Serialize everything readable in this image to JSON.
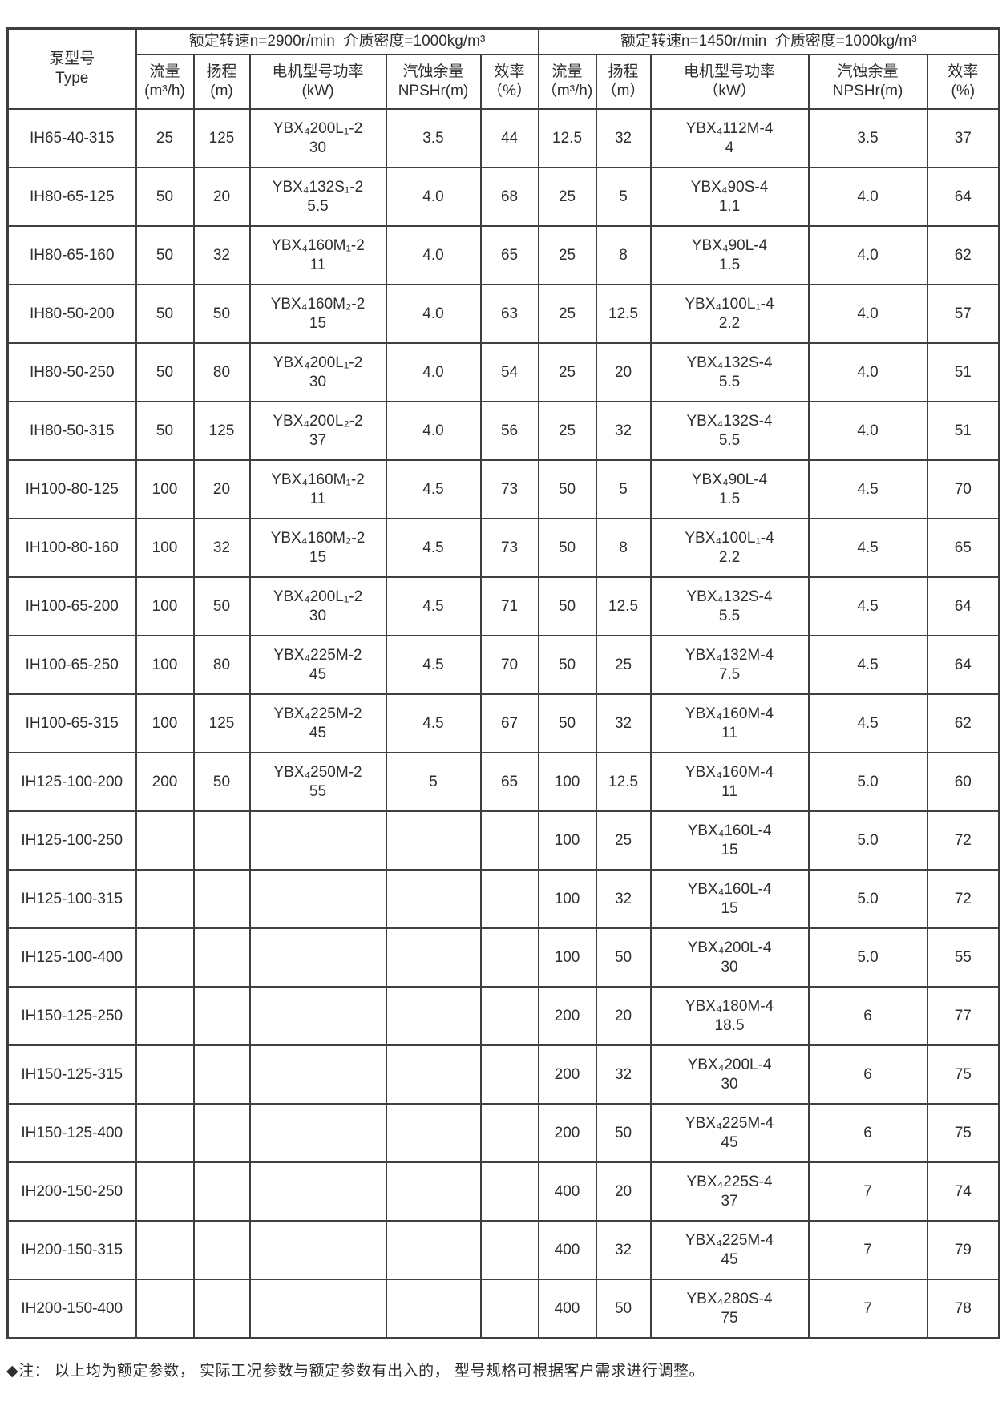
{
  "header": {
    "pump_type": "泵型号\nType",
    "group_2900": "额定转速n=2900r/min  介质密度=1000kg/m³",
    "group_1450": "额定转速n=1450r/min  介质密度=1000kg/m³",
    "subcolumns_2900": [
      "流量\n(m³/h)",
      "扬程\n(m)",
      "电机型号功率\n(kW)",
      "汽蚀余量\nNPSHr(m)",
      "效率\n（%）"
    ],
    "subcolumns_1450": [
      "流量\n（m³/h)",
      "扬程\n（m）",
      "电机型号功率\n（kW）",
      "汽蚀余量\nNPSHr(m)",
      "效率\n(%)"
    ]
  },
  "rows": [
    {
      "type": "IH65-40-315",
      "r2900": {
        "flow": "25",
        "head": "125",
        "motor": "YBX₄200L₁-2\n30",
        "npshr": "3.5",
        "eff": "44"
      },
      "r1450": {
        "flow": "12.5",
        "head": "32",
        "motor": "YBX₄112M-4\n4",
        "npshr": "3.5",
        "eff": "37"
      }
    },
    {
      "type": "IH80-65-125",
      "r2900": {
        "flow": "50",
        "head": "20",
        "motor": "YBX₄132S₁-2\n5.5",
        "npshr": "4.0",
        "eff": "68"
      },
      "r1450": {
        "flow": "25",
        "head": "5",
        "motor": "YBX₄90S-4\n1.1",
        "npshr": "4.0",
        "eff": "64"
      }
    },
    {
      "type": "IH80-65-160",
      "r2900": {
        "flow": "50",
        "head": "32",
        "motor": "YBX₄160M₁-2\n11",
        "npshr": "4.0",
        "eff": "65"
      },
      "r1450": {
        "flow": "25",
        "head": "8",
        "motor": "YBX₄90L-4\n1.5",
        "npshr": "4.0",
        "eff": "62"
      }
    },
    {
      "type": "IH80-50-200",
      "r2900": {
        "flow": "50",
        "head": "50",
        "motor": "YBX₄160M₂-2\n15",
        "npshr": "4.0",
        "eff": "63"
      },
      "r1450": {
        "flow": "25",
        "head": "12.5",
        "motor": "YBX₄100L₁-4\n2.2",
        "npshr": "4.0",
        "eff": "57"
      }
    },
    {
      "type": "IH80-50-250",
      "r2900": {
        "flow": "50",
        "head": "80",
        "motor": "YBX₄200L₁-2\n30",
        "npshr": "4.0",
        "eff": "54"
      },
      "r1450": {
        "flow": "25",
        "head": "20",
        "motor": "YBX₄132S-4\n5.5",
        "npshr": "4.0",
        "eff": "51"
      }
    },
    {
      "type": "IH80-50-315",
      "r2900": {
        "flow": "50",
        "head": "125",
        "motor": "YBX₄200L₂-2\n37",
        "npshr": "4.0",
        "eff": "56"
      },
      "r1450": {
        "flow": "25",
        "head": "32",
        "motor": "YBX₄132S-4\n5.5",
        "npshr": "4.0",
        "eff": "51"
      }
    },
    {
      "type": "IH100-80-125",
      "r2900": {
        "flow": "100",
        "head": "20",
        "motor": "YBX₄160M₁-2\n11",
        "npshr": "4.5",
        "eff": "73"
      },
      "r1450": {
        "flow": "50",
        "head": "5",
        "motor": "YBX₄90L-4\n1.5",
        "npshr": "4.5",
        "eff": "70"
      }
    },
    {
      "type": "IH100-80-160",
      "r2900": {
        "flow": "100",
        "head": "32",
        "motor": "YBX₄160M₂-2\n15",
        "npshr": "4.5",
        "eff": "73"
      },
      "r1450": {
        "flow": "50",
        "head": "8",
        "motor": "YBX₄100L₁-4\n2.2",
        "npshr": "4.5",
        "eff": "65"
      }
    },
    {
      "type": "IH100-65-200",
      "r2900": {
        "flow": "100",
        "head": "50",
        "motor": "YBX₄200L₁-2\n30",
        "npshr": "4.5",
        "eff": "71"
      },
      "r1450": {
        "flow": "50",
        "head": "12.5",
        "motor": "YBX₄132S-4\n5.5",
        "npshr": "4.5",
        "eff": "64"
      }
    },
    {
      "type": "IH100-65-250",
      "r2900": {
        "flow": "100",
        "head": "80",
        "motor": "YBX₄225M-2\n45",
        "npshr": "4.5",
        "eff": "70"
      },
      "r1450": {
        "flow": "50",
        "head": "25",
        "motor": "YBX₄132M-4\n7.5",
        "npshr": "4.5",
        "eff": "64"
      }
    },
    {
      "type": "IH100-65-315",
      "r2900": {
        "flow": "100",
        "head": "125",
        "motor": "YBX₄225M-2\n45",
        "npshr": "4.5",
        "eff": "67"
      },
      "r1450": {
        "flow": "50",
        "head": "32",
        "motor": "YBX₄160M-4\n11",
        "npshr": "4.5",
        "eff": "62"
      }
    },
    {
      "type": "IH125-100-200",
      "r2900": {
        "flow": "200",
        "head": "50",
        "motor": "YBX₄250M-2\n55",
        "npshr": "5",
        "eff": "65"
      },
      "r1450": {
        "flow": "100",
        "head": "12.5",
        "motor": "YBX₄160M-4\n11",
        "npshr": "5.0",
        "eff": "60"
      }
    },
    {
      "type": "IH125-100-250",
      "r2900": {
        "flow": "",
        "head": "",
        "motor": "",
        "npshr": "",
        "eff": ""
      },
      "r1450": {
        "flow": "100",
        "head": "25",
        "motor": "YBX₄160L-4\n15",
        "npshr": "5.0",
        "eff": "72"
      }
    },
    {
      "type": "IH125-100-315",
      "r2900": {
        "flow": "",
        "head": "",
        "motor": "",
        "npshr": "",
        "eff": ""
      },
      "r1450": {
        "flow": "100",
        "head": "32",
        "motor": "YBX₄160L-4\n15",
        "npshr": "5.0",
        "eff": "72"
      }
    },
    {
      "type": "IH125-100-400",
      "r2900": {
        "flow": "",
        "head": "",
        "motor": "",
        "npshr": "",
        "eff": ""
      },
      "r1450": {
        "flow": "100",
        "head": "50",
        "motor": "YBX₄200L-4\n30",
        "npshr": "5.0",
        "eff": "55"
      }
    },
    {
      "type": "IH150-125-250",
      "r2900": {
        "flow": "",
        "head": "",
        "motor": "",
        "npshr": "",
        "eff": ""
      },
      "r1450": {
        "flow": "200",
        "head": "20",
        "motor": "YBX₄180M-4\n18.5",
        "npshr": "6",
        "eff": "77"
      }
    },
    {
      "type": "IH150-125-315",
      "r2900": {
        "flow": "",
        "head": "",
        "motor": "",
        "npshr": "",
        "eff": ""
      },
      "r1450": {
        "flow": "200",
        "head": "32",
        "motor": "YBX₄200L-4\n30",
        "npshr": "6",
        "eff": "75"
      }
    },
    {
      "type": "IH150-125-400",
      "r2900": {
        "flow": "",
        "head": "",
        "motor": "",
        "npshr": "",
        "eff": ""
      },
      "r1450": {
        "flow": "200",
        "head": "50",
        "motor": "YBX₄225M-4\n45",
        "npshr": "6",
        "eff": "75"
      }
    },
    {
      "type": "IH200-150-250",
      "r2900": {
        "flow": "",
        "head": "",
        "motor": "",
        "npshr": "",
        "eff": ""
      },
      "r1450": {
        "flow": "400",
        "head": "20",
        "motor": "YBX₄225S-4\n37",
        "npshr": "7",
        "eff": "74"
      }
    },
    {
      "type": "IH200-150-315",
      "r2900": {
        "flow": "",
        "head": "",
        "motor": "",
        "npshr": "",
        "eff": ""
      },
      "r1450": {
        "flow": "400",
        "head": "32",
        "motor": "YBX₄225M-4\n45",
        "npshr": "7",
        "eff": "79"
      }
    },
    {
      "type": "IH200-150-400",
      "r2900": {
        "flow": "",
        "head": "",
        "motor": "",
        "npshr": "",
        "eff": ""
      },
      "r1450": {
        "flow": "400",
        "head": "50",
        "motor": "YBX₄280S-4\n75",
        "npshr": "7",
        "eff": "78"
      }
    }
  ],
  "footnote": "◆注： 以上均为额定参数， 实际工况参数与额定参数有出入的， 型号规格可根据客户需求进行调整。",
  "colors": {
    "grid": "#3f3f3f",
    "text": "#2e2e2e",
    "background": "#ffffff"
  }
}
